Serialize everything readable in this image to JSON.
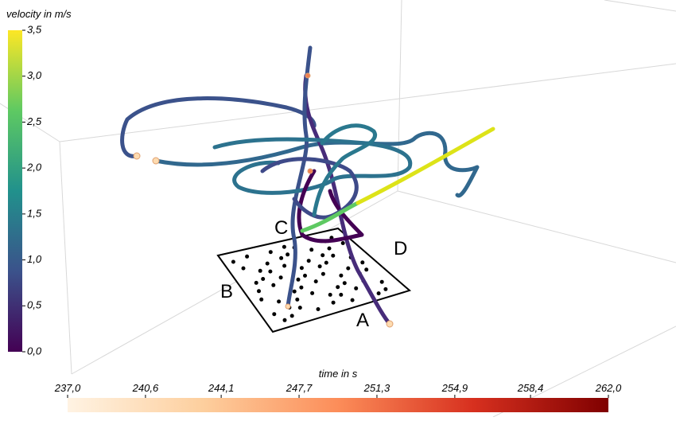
{
  "velocity_colorbar": {
    "label": "velocity in m/s",
    "lim": [
      0,
      3.5
    ],
    "ticks": [
      {
        "value": 0,
        "label": "0,0"
      },
      {
        "value": 0.5,
        "label": "0,5"
      },
      {
        "value": 1,
        "label": "1,0"
      },
      {
        "value": 1.5,
        "label": "1,5"
      },
      {
        "value": 2,
        "label": "2,0"
      },
      {
        "value": 2.5,
        "label": "2,5"
      },
      {
        "value": 3,
        "label": "3,0"
      },
      {
        "value": 3.5,
        "label": "3,5"
      }
    ],
    "colors": [
      "#440154",
      "#3b528b",
      "#21918c",
      "#5ec962",
      "#fde725"
    ]
  },
  "time_colorbar": {
    "label": "time in s",
    "lim": [
      237,
      262
    ],
    "ticks": [
      {
        "value": 237,
        "label": "237,0"
      },
      {
        "value": 240.6,
        "label": "240,6"
      },
      {
        "value": 244.1,
        "label": "244,1"
      },
      {
        "value": 247.7,
        "label": "247,7"
      },
      {
        "value": 251.3,
        "label": "251,3"
      },
      {
        "value": 254.9,
        "label": "254,9"
      },
      {
        "value": 258.4,
        "label": "258,4"
      },
      {
        "value": 262,
        "label": "262,0"
      }
    ],
    "colors": [
      "#fff3e3",
      "#fdcf9e",
      "#fc8d59",
      "#d7301f",
      "#7f0000"
    ]
  },
  "plate_labels": [
    "A",
    "B",
    "C",
    "D"
  ]
}
